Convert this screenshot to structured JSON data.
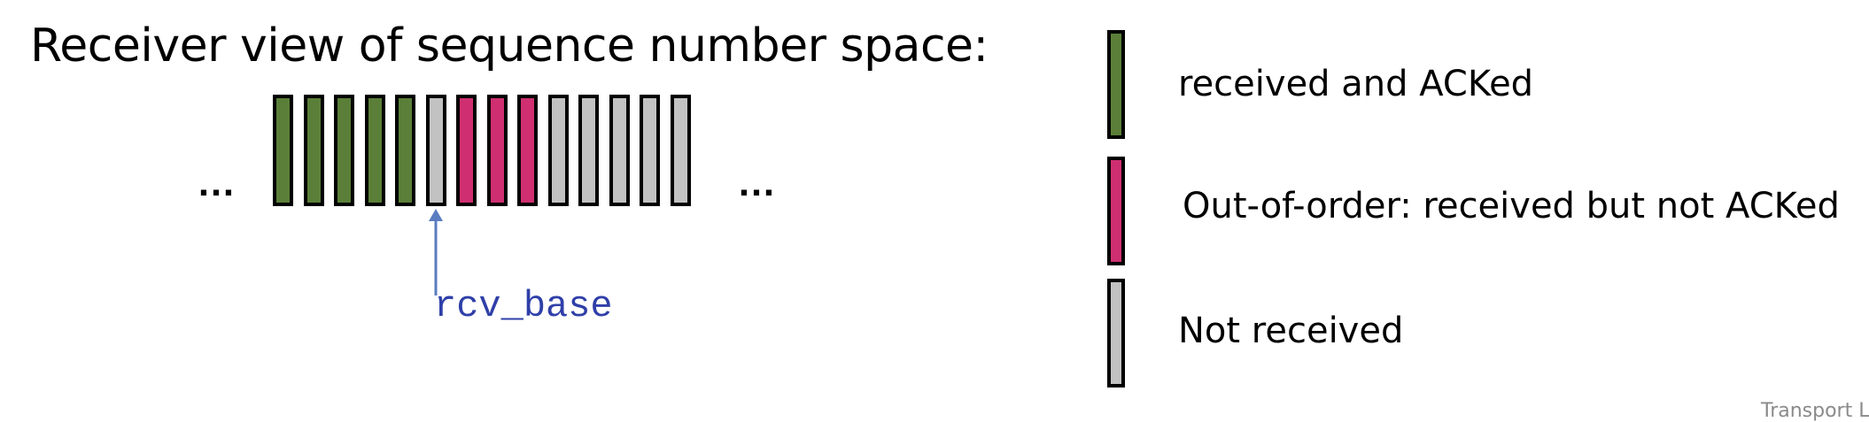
{
  "title": "Receiver view of sequence number space:",
  "ellipsis_left": "…",
  "ellipsis_right": "…",
  "sequence": {
    "slots": [
      "acked",
      "acked",
      "acked",
      "acked",
      "acked",
      "not_received",
      "out_of_order",
      "out_of_order",
      "out_of_order",
      "not_received",
      "not_received",
      "not_received",
      "not_received",
      "not_received"
    ],
    "pointer_index": 5,
    "pointer_label": "rcv_base"
  },
  "colors": {
    "acked": "#5b7f38",
    "out_of_order": "#cf2f70",
    "not_received": "#c2c2c2",
    "pointer": "#5a7cc0",
    "pointer_label": "#2f3fa8"
  },
  "legend": [
    {
      "state": "acked",
      "label": "received and ACKed"
    },
    {
      "state": "out_of_order",
      "label": "Out-of-order: received but not  ACKed"
    },
    {
      "state": "not_received",
      "label": "Not received"
    }
  ],
  "footer": "Transport L"
}
